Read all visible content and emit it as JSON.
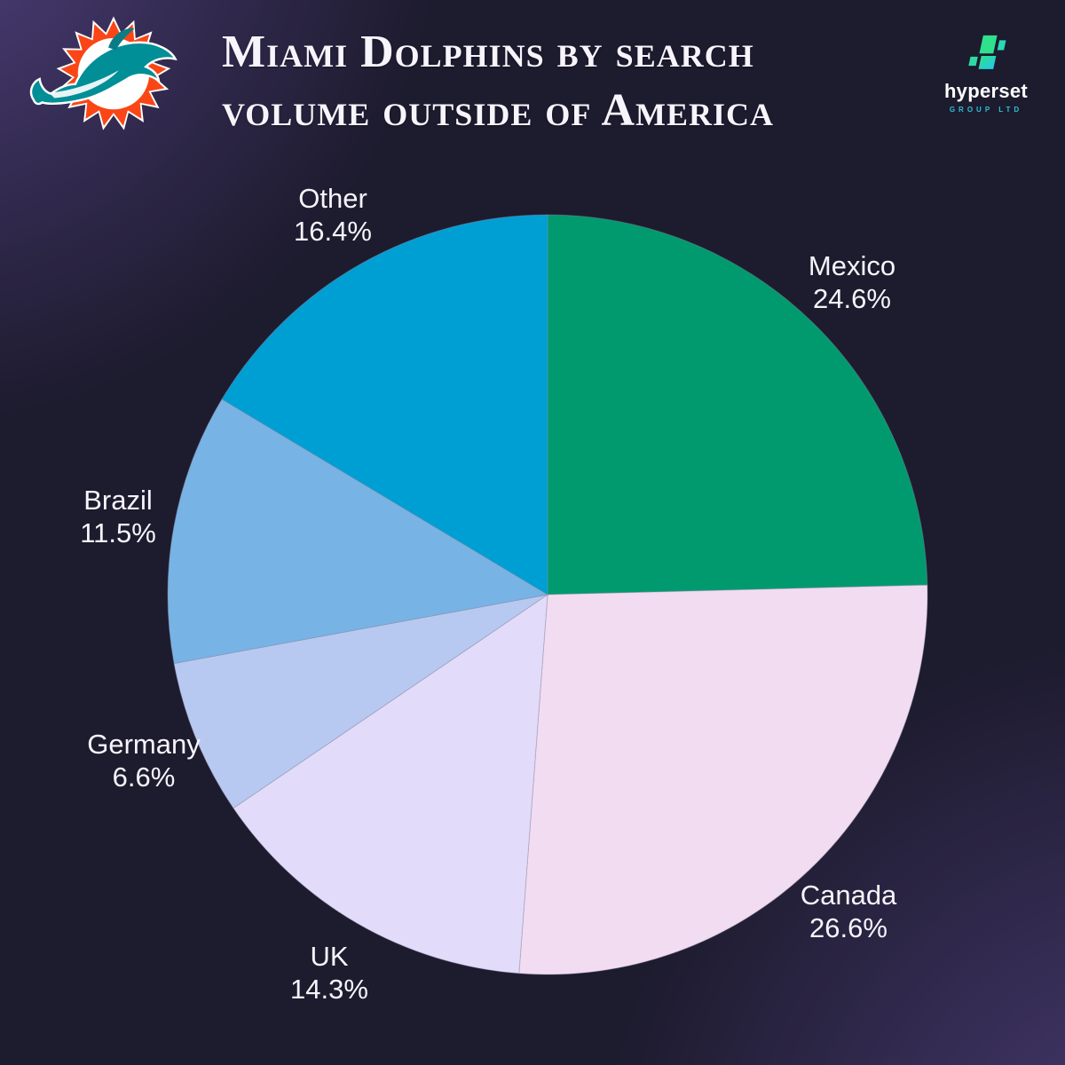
{
  "header": {
    "title_line1": "Miami Dolphins by search",
    "title_line2": "volume outside of America",
    "dolphins_logo": "miami-dolphins-logo",
    "brand": {
      "name": "hyperset",
      "subtitle": "GROUP LTD"
    }
  },
  "colors": {
    "background": "#1d1b2e",
    "glow_purple": "#7a5ec0",
    "title_text": "#f7f4fb",
    "label_text": "#ffffff",
    "brand_subtitle": "#2fc0d4",
    "dolphins_orange": "#fa4616",
    "dolphins_aqua": "#008e97",
    "hyperset_green": "#2fe08d",
    "hyperset_cyan": "#23c7e8"
  },
  "chart_data": {
    "type": "pie",
    "title": "Miami Dolphins by search volume outside of America",
    "unit": "%",
    "direction": "clockwise",
    "start_angle_deg": 0,
    "legend_position": "labels-around-pie",
    "slices": [
      {
        "label": "Mexico",
        "value": 24.6,
        "display": "24.6%",
        "color": "#009a6e"
      },
      {
        "label": "Canada",
        "value": 26.6,
        "display": "26.6%",
        "color": "#f2dcf2"
      },
      {
        "label": "UK",
        "value": 14.3,
        "display": "14.3%",
        "color": "#e2dcfa"
      },
      {
        "label": "Germany",
        "value": 6.6,
        "display": "6.6%",
        "color": "#b8c9f1"
      },
      {
        "label": "Brazil",
        "value": 11.5,
        "display": "11.5%",
        "color": "#78b3e5"
      },
      {
        "label": "Other",
        "value": 16.4,
        "display": "16.4%",
        "color": "#009fd3"
      }
    ]
  }
}
